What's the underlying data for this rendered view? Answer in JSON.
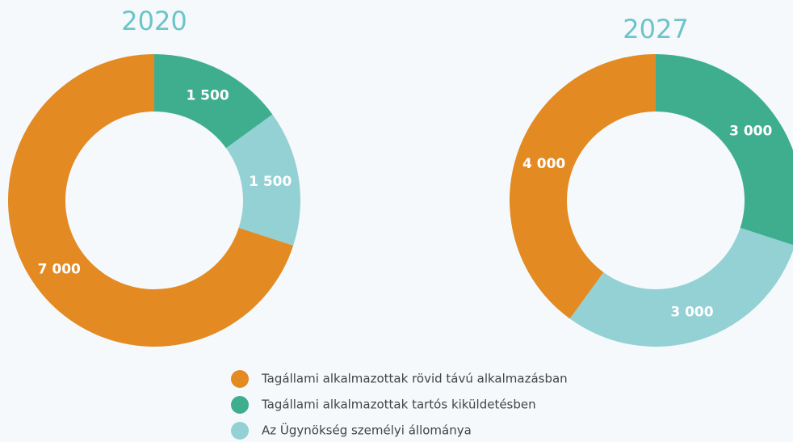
{
  "chart_data": [
    {
      "type": "donut",
      "title": "2020",
      "categories": [
        "Tagállami alkalmazottak tartós kiküldetésben",
        "Az Ügynökség személyi állománya",
        "Tagállami alkalmazottak rövid távú alkalmazásban"
      ],
      "values": [
        1500,
        1500,
        7000
      ],
      "value_labels": [
        "1 500",
        "1 500",
        "7 000"
      ],
      "colors": [
        "#3fae8f",
        "#93d1d4",
        "#e38a22"
      ]
    },
    {
      "type": "donut",
      "title": "2027",
      "categories": [
        "Tagállami alkalmazottak tartós kiküldetésben",
        "Az Ügynökség személyi állománya",
        "Tagállami alkalmazottak rövid távú alkalmazásban"
      ],
      "values": [
        3000,
        3000,
        4000
      ],
      "value_labels": [
        "3 000",
        "3 000",
        "4 000"
      ],
      "colors": [
        "#3fae8f",
        "#93d1d4",
        "#e38a22"
      ]
    }
  ]
}
